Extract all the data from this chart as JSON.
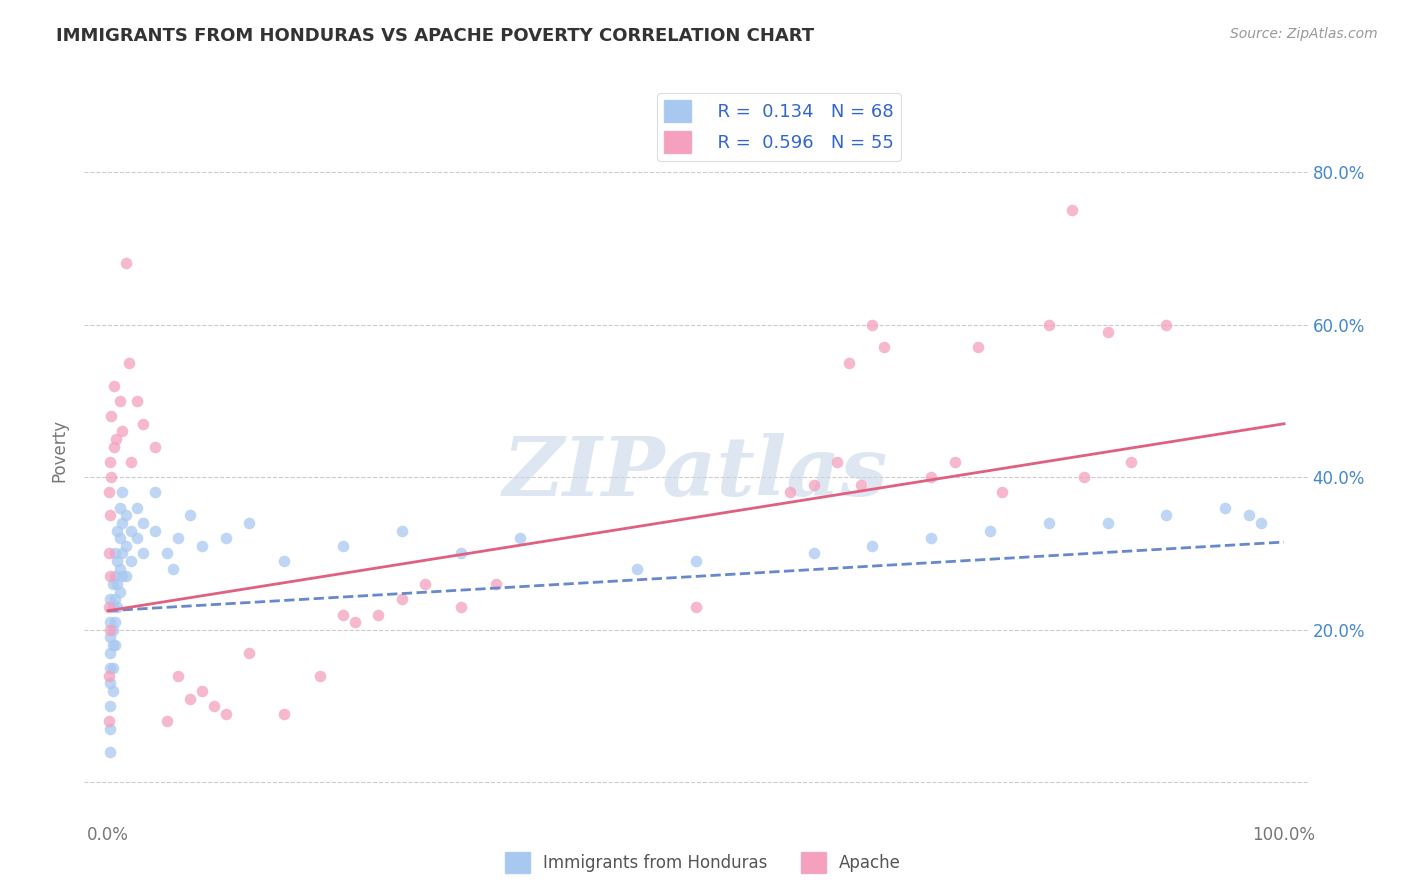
{
  "title": "IMMIGRANTS FROM HONDURAS VS APACHE POVERTY CORRELATION CHART",
  "source": "Source: ZipAtlas.com",
  "ylabel": "Poverty",
  "watermark": "ZIPatlas",
  "color_honduras": "#A8C8F0",
  "color_apache": "#F4A0BE",
  "color_honduras_line": "#6688CC",
  "color_apache_line": "#E06080",
  "xlim": [
    -0.02,
    1.02
  ],
  "ylim": [
    -0.05,
    0.92
  ],
  "ytick_vals": [
    0.0,
    0.2,
    0.4,
    0.6,
    0.8
  ],
  "ytick_labels": [
    "",
    "20.0%",
    "40.0%",
    "60.0%",
    "80.0%"
  ],
  "xtick_vals": [
    0.0,
    1.0
  ],
  "xtick_labels": [
    "0.0%",
    "100.0%"
  ],
  "background_color": "#FFFFFF",
  "grid_color": "#CCCCCC",
  "honduras_scatter": [
    [
      0.002,
      0.24
    ],
    [
      0.002,
      0.21
    ],
    [
      0.002,
      0.19
    ],
    [
      0.002,
      0.17
    ],
    [
      0.002,
      0.15
    ],
    [
      0.002,
      0.13
    ],
    [
      0.002,
      0.1
    ],
    [
      0.002,
      0.07
    ],
    [
      0.002,
      0.04
    ],
    [
      0.004,
      0.26
    ],
    [
      0.004,
      0.23
    ],
    [
      0.004,
      0.2
    ],
    [
      0.004,
      0.18
    ],
    [
      0.004,
      0.15
    ],
    [
      0.004,
      0.12
    ],
    [
      0.006,
      0.3
    ],
    [
      0.006,
      0.27
    ],
    [
      0.006,
      0.24
    ],
    [
      0.006,
      0.21
    ],
    [
      0.006,
      0.18
    ],
    [
      0.008,
      0.33
    ],
    [
      0.008,
      0.29
    ],
    [
      0.008,
      0.26
    ],
    [
      0.008,
      0.23
    ],
    [
      0.01,
      0.36
    ],
    [
      0.01,
      0.32
    ],
    [
      0.01,
      0.28
    ],
    [
      0.01,
      0.25
    ],
    [
      0.012,
      0.38
    ],
    [
      0.012,
      0.34
    ],
    [
      0.012,
      0.3
    ],
    [
      0.012,
      0.27
    ],
    [
      0.015,
      0.35
    ],
    [
      0.015,
      0.31
    ],
    [
      0.015,
      0.27
    ],
    [
      0.02,
      0.33
    ],
    [
      0.02,
      0.29
    ],
    [
      0.025,
      0.36
    ],
    [
      0.025,
      0.32
    ],
    [
      0.03,
      0.34
    ],
    [
      0.03,
      0.3
    ],
    [
      0.04,
      0.38
    ],
    [
      0.04,
      0.33
    ],
    [
      0.05,
      0.3
    ],
    [
      0.055,
      0.28
    ],
    [
      0.06,
      0.32
    ],
    [
      0.07,
      0.35
    ],
    [
      0.08,
      0.31
    ],
    [
      0.1,
      0.32
    ],
    [
      0.12,
      0.34
    ],
    [
      0.15,
      0.29
    ],
    [
      0.2,
      0.31
    ],
    [
      0.25,
      0.33
    ],
    [
      0.3,
      0.3
    ],
    [
      0.35,
      0.32
    ],
    [
      0.45,
      0.28
    ],
    [
      0.5,
      0.29
    ],
    [
      0.6,
      0.3
    ],
    [
      0.65,
      0.31
    ],
    [
      0.7,
      0.32
    ],
    [
      0.75,
      0.33
    ],
    [
      0.8,
      0.34
    ],
    [
      0.85,
      0.34
    ],
    [
      0.9,
      0.35
    ],
    [
      0.95,
      0.36
    ],
    [
      0.97,
      0.35
    ],
    [
      0.98,
      0.34
    ]
  ],
  "apache_scatter": [
    [
      0.001,
      0.38
    ],
    [
      0.001,
      0.3
    ],
    [
      0.001,
      0.23
    ],
    [
      0.001,
      0.14
    ],
    [
      0.001,
      0.08
    ],
    [
      0.002,
      0.42
    ],
    [
      0.002,
      0.35
    ],
    [
      0.002,
      0.27
    ],
    [
      0.002,
      0.2
    ],
    [
      0.003,
      0.48
    ],
    [
      0.003,
      0.4
    ],
    [
      0.005,
      0.52
    ],
    [
      0.005,
      0.44
    ],
    [
      0.007,
      0.45
    ],
    [
      0.01,
      0.5
    ],
    [
      0.012,
      0.46
    ],
    [
      0.015,
      0.68
    ],
    [
      0.018,
      0.55
    ],
    [
      0.02,
      0.42
    ],
    [
      0.025,
      0.5
    ],
    [
      0.03,
      0.47
    ],
    [
      0.04,
      0.44
    ],
    [
      0.05,
      0.08
    ],
    [
      0.06,
      0.14
    ],
    [
      0.07,
      0.11
    ],
    [
      0.08,
      0.12
    ],
    [
      0.09,
      0.1
    ],
    [
      0.1,
      0.09
    ],
    [
      0.12,
      0.17
    ],
    [
      0.15,
      0.09
    ],
    [
      0.18,
      0.14
    ],
    [
      0.2,
      0.22
    ],
    [
      0.21,
      0.21
    ],
    [
      0.23,
      0.22
    ],
    [
      0.25,
      0.24
    ],
    [
      0.27,
      0.26
    ],
    [
      0.3,
      0.23
    ],
    [
      0.33,
      0.26
    ],
    [
      0.5,
      0.23
    ],
    [
      0.58,
      0.38
    ],
    [
      0.6,
      0.39
    ],
    [
      0.62,
      0.42
    ],
    [
      0.63,
      0.55
    ],
    [
      0.64,
      0.39
    ],
    [
      0.65,
      0.6
    ],
    [
      0.66,
      0.57
    ],
    [
      0.7,
      0.4
    ],
    [
      0.72,
      0.42
    ],
    [
      0.74,
      0.57
    ],
    [
      0.76,
      0.38
    ],
    [
      0.8,
      0.6
    ],
    [
      0.82,
      0.75
    ],
    [
      0.83,
      0.4
    ],
    [
      0.85,
      0.59
    ],
    [
      0.87,
      0.42
    ],
    [
      0.9,
      0.6
    ]
  ],
  "honduras_trendline": [
    [
      0.0,
      0.225
    ],
    [
      1.0,
      0.315
    ]
  ],
  "apache_trendline": [
    [
      0.0,
      0.225
    ],
    [
      1.0,
      0.47
    ]
  ]
}
